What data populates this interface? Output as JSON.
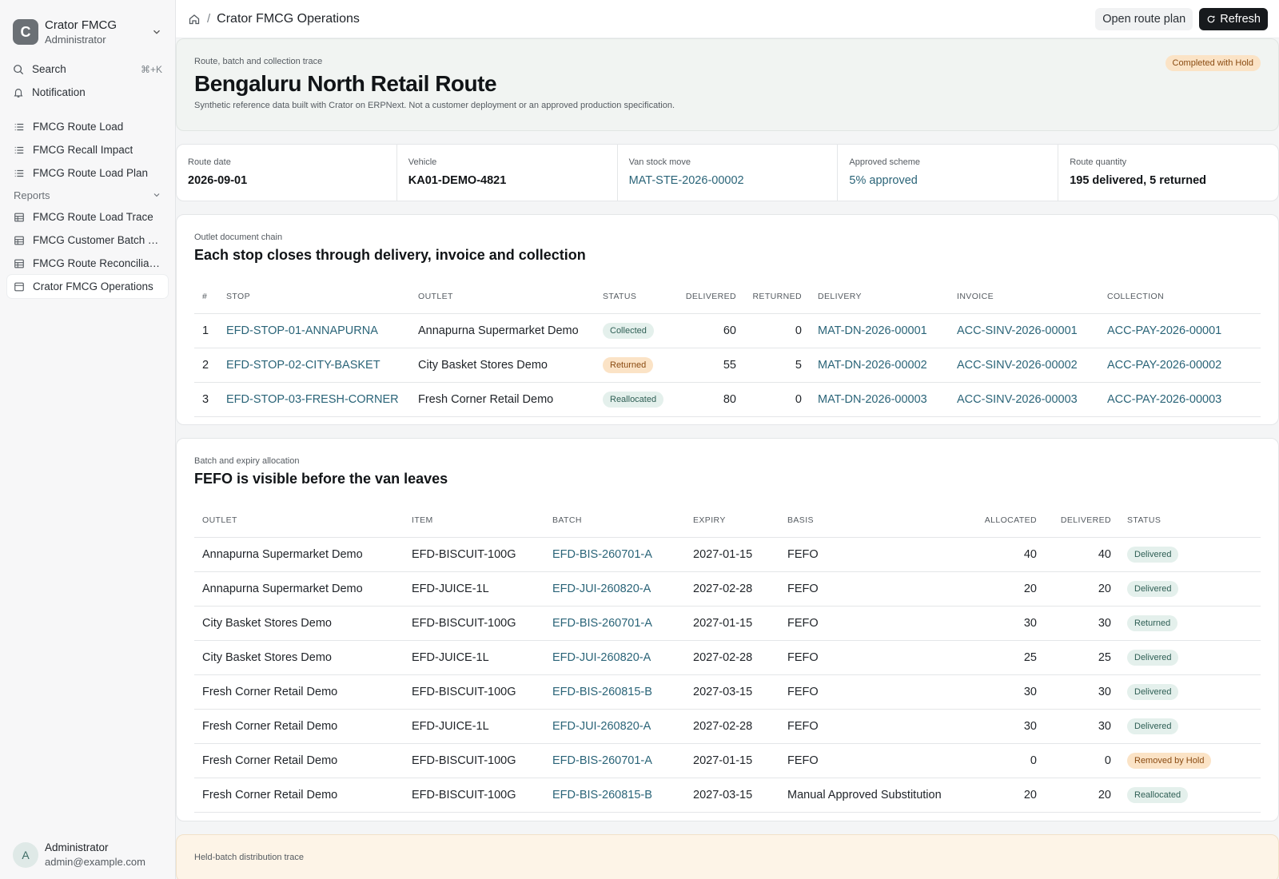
{
  "sidebar": {
    "brand": {
      "initial": "C",
      "name": "Crator FMCG",
      "role": "Administrator"
    },
    "search": {
      "label": "Search",
      "shortcut": "⌘+K"
    },
    "notification": {
      "label": "Notification"
    },
    "items": [
      {
        "label": "FMCG Route Load",
        "icon": "list-icon"
      },
      {
        "label": "FMCG Recall Impact",
        "icon": "list-icon"
      },
      {
        "label": "FMCG Route Load Plan",
        "icon": "list-icon"
      }
    ],
    "reports_section": "Reports",
    "reports": [
      {
        "label": "FMCG Route Load Trace",
        "icon": "table-icon"
      },
      {
        "label": "FMCG Customer Batch T...",
        "icon": "table-icon"
      },
      {
        "label": "FMCG Route Reconciliati...",
        "icon": "table-icon"
      },
      {
        "label": "Crator FMCG Operations",
        "icon": "page-icon",
        "active": true
      }
    ],
    "user": {
      "initial": "A",
      "name": "Administrator",
      "email": "admin@example.com"
    }
  },
  "topbar": {
    "title": "Crator FMCG Operations",
    "open_route_plan": "Open route plan",
    "refresh": "Refresh"
  },
  "hero": {
    "eyebrow": "Route, batch and collection trace",
    "title": "Bengaluru North Retail Route",
    "subtitle": "Synthetic reference data built with Crator on ERPNext. Not a customer deployment or an approved production specification.",
    "status": "Completed with Hold"
  },
  "kpis": [
    {
      "label": "Route date",
      "value": "2026-09-01",
      "link": false
    },
    {
      "label": "Vehicle",
      "value": "KA01-DEMO-4821",
      "link": false
    },
    {
      "label": "Van stock move",
      "value": "MAT-STE-2026-00002",
      "link": true
    },
    {
      "label": "Approved scheme",
      "value": "5% approved",
      "link": true
    },
    {
      "label": "Route quantity",
      "value": "195 delivered, 5 returned",
      "link": false
    }
  ],
  "chain": {
    "eyebrow": "Outlet document chain",
    "title": "Each stop closes through delivery, invoice and collection",
    "headers": [
      "#",
      "STOP",
      "OUTLET",
      "STATUS",
      "DELIVERED",
      "RETURNED",
      "DELIVERY",
      "INVOICE",
      "COLLECTION"
    ],
    "rows": [
      {
        "n": "1",
        "stop": "EFD-STOP-01-ANNAPURNA",
        "outlet": "Annapurna Supermarket Demo",
        "status": "Collected",
        "tone": "ok",
        "delivered": "60",
        "returned": "0",
        "delivery": "MAT-DN-2026-00001",
        "invoice": "ACC-SINV-2026-00001",
        "collection": "ACC-PAY-2026-00001"
      },
      {
        "n": "2",
        "stop": "EFD-STOP-02-CITY-BASKET",
        "outlet": "City Basket Stores Demo",
        "status": "Returned",
        "tone": "warn",
        "delivered": "55",
        "returned": "5",
        "delivery": "MAT-DN-2026-00002",
        "invoice": "ACC-SINV-2026-00002",
        "collection": "ACC-PAY-2026-00002"
      },
      {
        "n": "3",
        "stop": "EFD-STOP-03-FRESH-CORNER",
        "outlet": "Fresh Corner Retail Demo",
        "status": "Reallocated",
        "tone": "ok",
        "delivered": "80",
        "returned": "0",
        "delivery": "MAT-DN-2026-00003",
        "invoice": "ACC-SINV-2026-00003",
        "collection": "ACC-PAY-2026-00003"
      }
    ]
  },
  "fefo": {
    "eyebrow": "Batch and expiry allocation",
    "title": "FEFO is visible before the van leaves",
    "headers": [
      "OUTLET",
      "ITEM",
      "BATCH",
      "EXPIRY",
      "BASIS",
      "ALLOCATED",
      "DELIVERED",
      "STATUS"
    ],
    "rows": [
      {
        "outlet": "Annapurna Supermarket Demo",
        "item": "EFD-BISCUIT-100G",
        "batch": "EFD-BIS-260701-A",
        "expiry": "2027-01-15",
        "basis": "FEFO",
        "allocated": "40",
        "delivered": "40",
        "status": "Delivered",
        "tone": "ok"
      },
      {
        "outlet": "Annapurna Supermarket Demo",
        "item": "EFD-JUICE-1L",
        "batch": "EFD-JUI-260820-A",
        "expiry": "2027-02-28",
        "basis": "FEFO",
        "allocated": "20",
        "delivered": "20",
        "status": "Delivered",
        "tone": "ok"
      },
      {
        "outlet": "City Basket Stores Demo",
        "item": "EFD-BISCUIT-100G",
        "batch": "EFD-BIS-260701-A",
        "expiry": "2027-01-15",
        "basis": "FEFO",
        "allocated": "30",
        "delivered": "30",
        "status": "Returned",
        "tone": "ok"
      },
      {
        "outlet": "City Basket Stores Demo",
        "item": "EFD-JUICE-1L",
        "batch": "EFD-JUI-260820-A",
        "expiry": "2027-02-28",
        "basis": "FEFO",
        "allocated": "25",
        "delivered": "25",
        "status": "Delivered",
        "tone": "ok"
      },
      {
        "outlet": "Fresh Corner Retail Demo",
        "item": "EFD-BISCUIT-100G",
        "batch": "EFD-BIS-260815-B",
        "expiry": "2027-03-15",
        "basis": "FEFO",
        "allocated": "30",
        "delivered": "30",
        "status": "Delivered",
        "tone": "ok"
      },
      {
        "outlet": "Fresh Corner Retail Demo",
        "item": "EFD-JUICE-1L",
        "batch": "EFD-JUI-260820-A",
        "expiry": "2027-02-28",
        "basis": "FEFO",
        "allocated": "30",
        "delivered": "30",
        "status": "Delivered",
        "tone": "ok"
      },
      {
        "outlet": "Fresh Corner Retail Demo",
        "item": "EFD-BISCUIT-100G",
        "batch": "EFD-BIS-260701-A",
        "expiry": "2027-01-15",
        "basis": "FEFO",
        "allocated": "0",
        "delivered": "0",
        "status": "Removed by Hold",
        "tone": "warn"
      },
      {
        "outlet": "Fresh Corner Retail Demo",
        "item": "EFD-BISCUIT-100G",
        "batch": "EFD-BIS-260815-B",
        "expiry": "2027-03-15",
        "basis": "Manual Approved Substitution",
        "allocated": "20",
        "delivered": "20",
        "status": "Reallocated",
        "tone": "ok"
      }
    ]
  },
  "held": {
    "eyebrow": "Held-batch distribution trace"
  },
  "colors": {
    "link": "#2a6478",
    "warn_bg": "#fbe3c6",
    "ok_bg": "#e4f0ec"
  }
}
